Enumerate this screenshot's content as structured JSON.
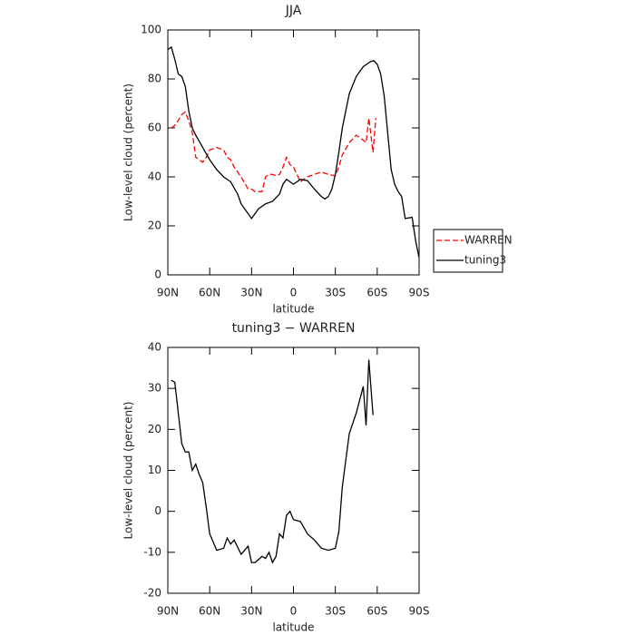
{
  "chart_data": [
    {
      "type": "line",
      "title": "JJA",
      "xlabel": "latitude",
      "ylabel": "Low-level cloud (percent)",
      "xlim": [
        90,
        -90
      ],
      "xticks": [
        {
          "value": 90,
          "label": "90N"
        },
        {
          "value": 60,
          "label": "60N"
        },
        {
          "value": 30,
          "label": "30N"
        },
        0,
        {
          "value": -30,
          "label": "30S"
        },
        {
          "value": -60,
          "label": "60S"
        },
        {
          "value": -90,
          "label": "90S"
        }
      ],
      "ylim": [
        0,
        100
      ],
      "yticks": [
        0,
        20,
        40,
        60,
        80,
        100
      ],
      "legend": "right",
      "series": [
        {
          "name": "WARREN",
          "color": "#ff0000",
          "dashed": true,
          "x": [
            87.5,
            85,
            82.5,
            80,
            77.5,
            75,
            72.5,
            70,
            67.5,
            65,
            62.5,
            60,
            55,
            50,
            47.5,
            45,
            42.5,
            37.5,
            32.5,
            30,
            27.5,
            22.5,
            20,
            17.5,
            15,
            12.5,
            10,
            7.5,
            5,
            2.5,
            0,
            -5,
            -10,
            -15,
            -20,
            -25,
            -30,
            -32.5,
            -35,
            -40,
            -45,
            -50,
            -52,
            -54,
            -57,
            -59
          ],
          "values": [
            60,
            61,
            63,
            65.5,
            66.5,
            63,
            58,
            48,
            47,
            46,
            48,
            51,
            52,
            51,
            48,
            47,
            44,
            40,
            35,
            35,
            34,
            34,
            40,
            41,
            41,
            40.5,
            41,
            44,
            48,
            45,
            44,
            38,
            40,
            41,
            42,
            41,
            40.5,
            44,
            49,
            54,
            57,
            55,
            54,
            64,
            50,
            64
          ]
        },
        {
          "name": "tuning3",
          "color": "#000000",
          "dashed": false,
          "x": [
            90,
            87.5,
            85,
            82.5,
            80,
            77.5,
            75,
            72.5,
            70,
            65,
            60,
            55,
            50,
            45,
            40,
            37.5,
            35,
            30,
            25,
            20,
            15,
            10,
            7.5,
            5,
            2.5,
            0,
            -5,
            -10,
            -15,
            -20,
            -22.5,
            -25,
            -27.5,
            -30,
            -32.5,
            -35,
            -40,
            -45,
            -50,
            -55,
            -57.5,
            -60,
            -62.5,
            -65,
            -67.5,
            -70,
            -72.5,
            -75,
            -77.5,
            -80,
            -85,
            -87.5,
            -90
          ],
          "values": [
            92,
            93,
            88,
            82,
            81,
            77,
            67,
            60,
            57,
            52,
            47,
            43,
            40,
            38,
            33,
            29,
            27,
            23,
            27,
            29,
            30,
            33,
            37,
            39,
            38,
            37,
            39,
            38.5,
            35,
            32,
            31,
            32,
            35,
            41,
            50,
            60,
            74,
            81,
            85,
            87,
            87.5,
            86,
            82,
            73,
            58,
            43,
            37,
            34,
            32,
            23,
            23.5,
            14,
            7
          ]
        }
      ]
    },
    {
      "type": "line",
      "title": "tuning3 − WARREN",
      "xlabel": "latitude",
      "ylabel": "Low-level cloud (percent)",
      "xlim": [
        90,
        -90
      ],
      "xticks": [
        {
          "value": 90,
          "label": "90N"
        },
        {
          "value": 60,
          "label": "60N"
        },
        {
          "value": 30,
          "label": "30N"
        },
        0,
        {
          "value": -30,
          "label": "30S"
        },
        {
          "value": -60,
          "label": "60S"
        },
        {
          "value": -90,
          "label": "90S"
        }
      ],
      "ylim": [
        -20,
        40
      ],
      "yticks": [
        -20,
        -10,
        0,
        10,
        20,
        30,
        40
      ],
      "color": "#000000",
      "x": [
        87.5,
        85,
        82.5,
        80,
        77.5,
        75,
        72.5,
        70,
        67.5,
        65,
        62.5,
        60,
        55,
        50,
        47.5,
        45,
        42.5,
        37.5,
        32.5,
        30,
        27.5,
        22.5,
        20,
        17.5,
        15,
        12.5,
        10,
        7.5,
        5,
        2.5,
        0,
        -5,
        -10,
        -15,
        -20,
        -25,
        -30,
        -32.5,
        -35,
        -40,
        -45,
        -50,
        -52,
        -54,
        -57
      ],
      "values": [
        32,
        31.5,
        24,
        16.5,
        14.5,
        14.5,
        10,
        11.5,
        9,
        7,
        1,
        -5.5,
        -9.5,
        -9,
        -6.5,
        -8,
        -7,
        -10.5,
        -8.5,
        -12.5,
        -12.5,
        -11,
        -11.5,
        -10,
        -12.5,
        -11,
        -5.5,
        -6.5,
        -1,
        0,
        -2,
        -2.5,
        -5.5,
        -7,
        -9,
        -9.5,
        -9,
        -5,
        6,
        19,
        24,
        30.5,
        21,
        37,
        23.5
      ]
    }
  ]
}
